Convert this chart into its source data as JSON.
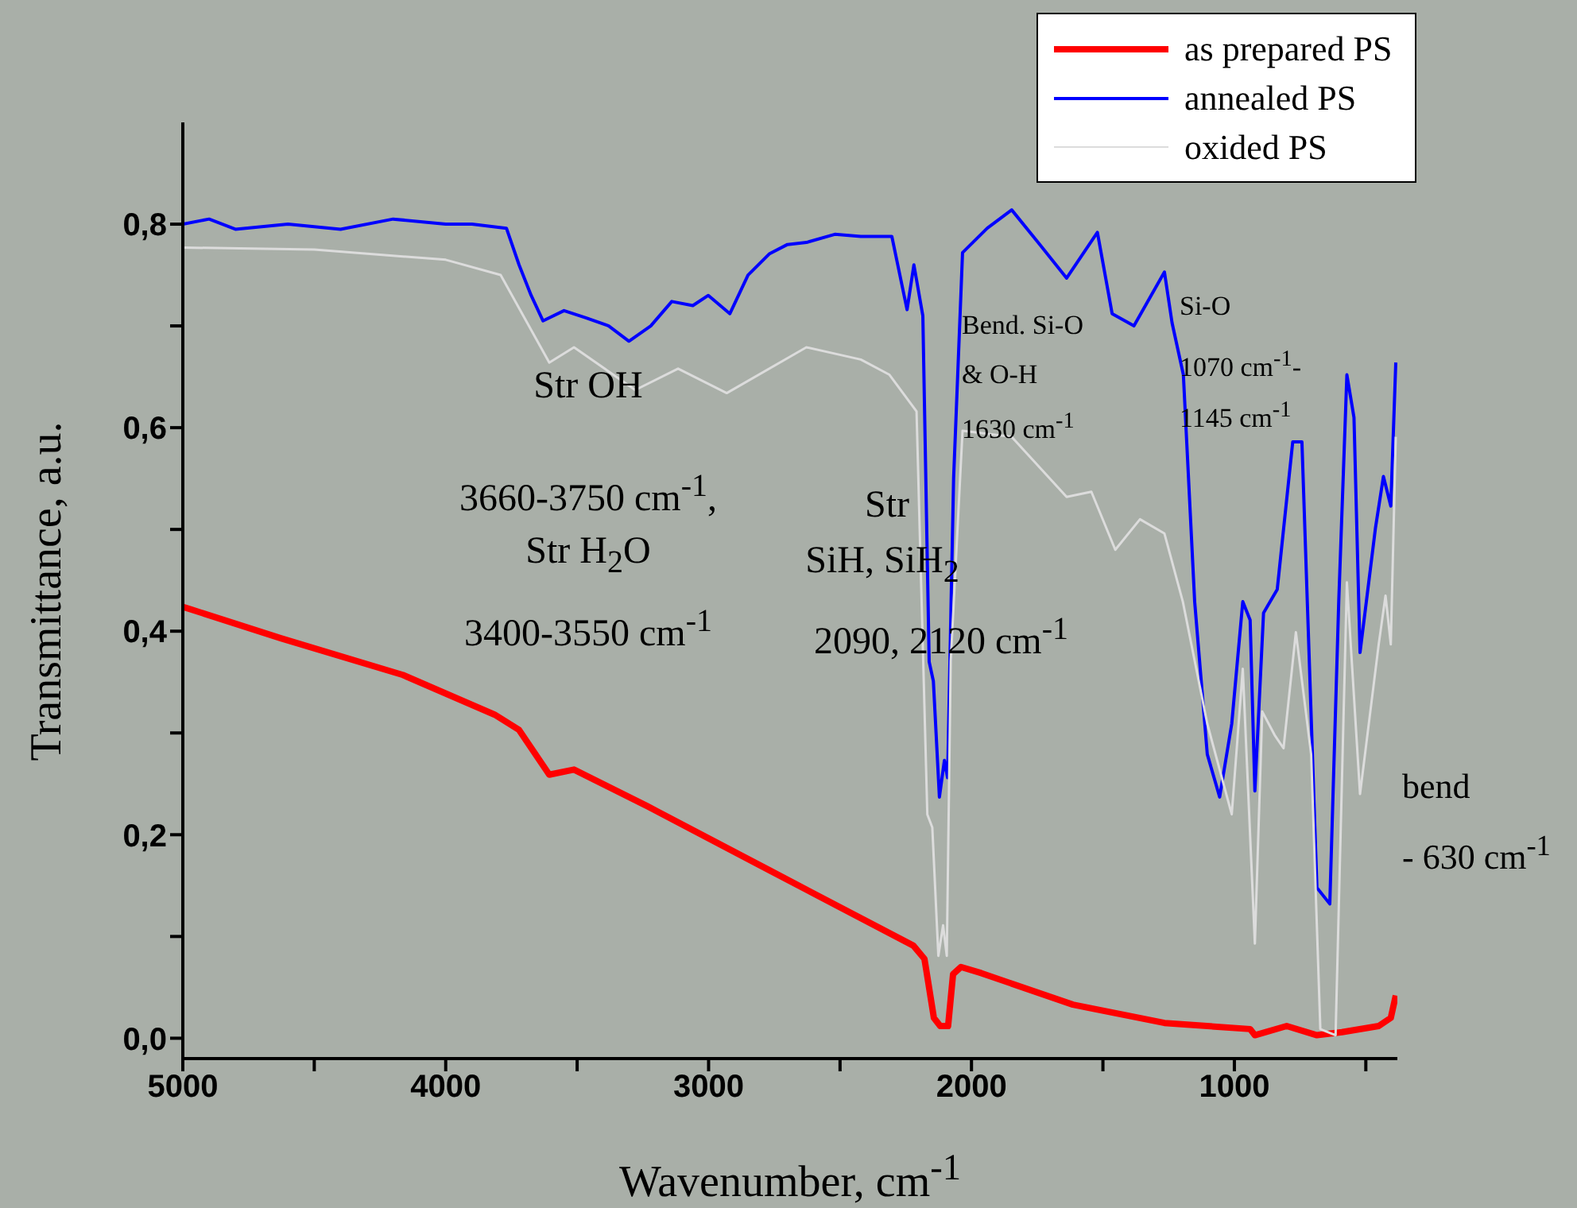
{
  "chart_data": {
    "type": "line",
    "xlabel": "Wavenumber, cm$^{-1}$",
    "ylabel": "Transmittance, a.u.",
    "legend": "top right",
    "xlim": [
      5000,
      380
    ],
    "ylim": [
      -0.02,
      0.9
    ],
    "xticks": [
      5000,
      {
        "value": 4500,
        "label": null
      },
      4000,
      {
        "value": 3500,
        "label": null
      },
      3000,
      {
        "value": 2500,
        "label": null
      },
      2000,
      {
        "value": 1500,
        "label": null
      },
      1000,
      {
        "value": 500,
        "label": null
      }
    ],
    "yticks": [
      {
        "value": 0,
        "label": "0,0"
      },
      {
        "value": 0.1,
        "label": null
      },
      {
        "value": 0.2,
        "label": "0,2"
      },
      {
        "value": 0.3,
        "label": null
      },
      {
        "value": 0.4,
        "label": "0,4"
      },
      {
        "value": 0.5,
        "label": null
      },
      {
        "value": 0.6,
        "label": "0,6"
      },
      {
        "value": 0.7,
        "label": null
      },
      {
        "value": 0.8,
        "label": "0,8"
      }
    ],
    "series": [
      {
        "name": "as prepared PS",
        "color": "#ff0000",
        "x": [
          5000,
          4627,
          4163,
          3814,
          3721,
          3606,
          3512,
          3233,
          2768,
          2221,
          2179,
          2172,
          2143,
          2119,
          2089,
          2070,
          2040,
          1963,
          1614,
          1266,
          940,
          922,
          801,
          686,
          591,
          451,
          405,
          386
        ],
        "values": [
          0.424,
          0.393,
          0.357,
          0.318,
          0.303,
          0.259,
          0.264,
          0.228,
          0.165,
          0.091,
          0.078,
          0.067,
          0.02,
          0.012,
          0.012,
          0.063,
          0.07,
          0.064,
          0.033,
          0.015,
          0.009,
          0.003,
          0.012,
          0.003,
          0.006,
          0.012,
          0.02,
          0.042
        ]
      },
      {
        "name": "annealed PS",
        "color": "#0000ff",
        "x": [
          5000,
          4900,
          4800,
          4600,
          4400,
          4200,
          4000,
          3900,
          3769,
          3721,
          3675,
          3630,
          3550,
          3467,
          3380,
          3303,
          3220,
          3140,
          3060,
          3001,
          2919,
          2850,
          2768,
          2700,
          2628,
          2520,
          2421,
          2303,
          2245,
          2219,
          2185,
          2161,
          2145,
          2122,
          2103,
          2091,
          2068,
          2034,
          1940,
          1847,
          1740,
          1638,
          1521,
          1465,
          1382,
          1266,
          1237,
          1194,
          1151,
          1103,
          1056,
          1010,
          968,
          940,
          922,
          889,
          837,
          778,
          743,
          686,
          637,
          603,
          572,
          545,
          522,
          463,
          433,
          405,
          386
        ],
        "values": [
          0.8,
          0.805,
          0.795,
          0.8,
          0.795,
          0.805,
          0.8,
          0.8,
          0.796,
          0.76,
          0.73,
          0.705,
          0.715,
          0.708,
          0.7,
          0.685,
          0.7,
          0.724,
          0.72,
          0.73,
          0.712,
          0.75,
          0.771,
          0.78,
          0.782,
          0.79,
          0.788,
          0.788,
          0.716,
          0.76,
          0.71,
          0.37,
          0.351,
          0.237,
          0.273,
          0.256,
          0.55,
          0.772,
          0.796,
          0.814,
          0.78,
          0.747,
          0.792,
          0.712,
          0.7,
          0.753,
          0.703,
          0.652,
          0.429,
          0.279,
          0.237,
          0.309,
          0.429,
          0.411,
          0.243,
          0.418,
          0.441,
          0.586,
          0.586,
          0.148,
          0.132,
          0.429,
          0.652,
          0.61,
          0.379,
          0.502,
          0.552,
          0.523,
          0.664
        ]
      },
      {
        "name": "oxided PS",
        "color": "#dcdcdc",
        "x": [
          5000,
          4500,
          4000,
          3791,
          3606,
          3512,
          3279,
          3116,
          2931,
          2628,
          2421,
          2312,
          2209,
          2168,
          2149,
          2126,
          2108,
          2094,
          2079,
          2034,
          1847,
          1638,
          1544,
          1453,
          1359,
          1266,
          1196,
          1103,
          1010,
          968,
          922,
          894,
          847,
          813,
          766,
          708,
          673,
          615,
          572,
          522,
          451,
          425,
          405,
          386
        ],
        "values": [
          0.777,
          0.775,
          0.765,
          0.75,
          0.664,
          0.679,
          0.637,
          0.658,
          0.634,
          0.679,
          0.667,
          0.652,
          0.616,
          0.22,
          0.207,
          0.081,
          0.111,
          0.081,
          0.37,
          0.597,
          0.591,
          0.532,
          0.537,
          0.48,
          0.51,
          0.496,
          0.429,
          0.309,
          0.22,
          0.363,
          0.093,
          0.321,
          0.298,
          0.285,
          0.399,
          0.279,
          0.009,
          0.003,
          0.448,
          0.24,
          0.387,
          0.435,
          0.387,
          0.591
        ]
      }
    ],
    "annotations": [
      "Str  OH",
      "3660-3750 cm$^{-1}$,",
      "Str H$_{2}$O",
      "3400-3550 cm$^{-1}$",
      "Str",
      "SiH,  SiH$_{2}$",
      "2090, 2120 cm$^{-1}$",
      "Bend. Si-O",
      "& O-H",
      "1630 cm$^{-1}$",
      "Si-O",
      "1070 cm$^{-1}$-",
      "1145 cm$^{-1}$",
      "bend",
      "- 630 cm$^{-1}$"
    ]
  }
}
